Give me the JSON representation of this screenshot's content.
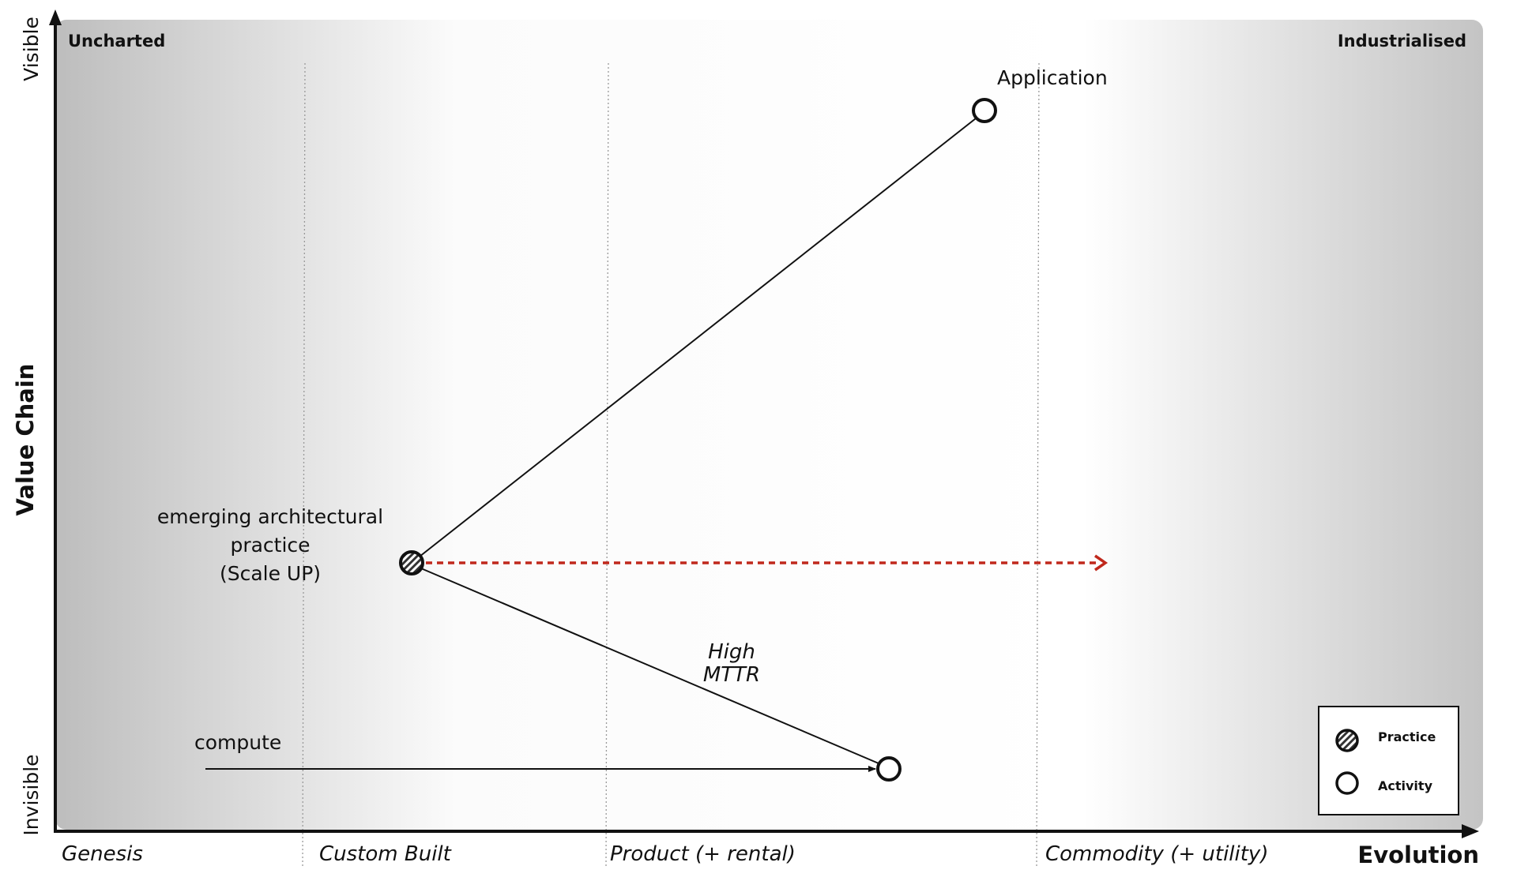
{
  "map": {
    "y_axis_label": "Value Chain",
    "y_top_label": "Visible",
    "y_bottom_label": "Invisible",
    "x_axis_label": "Evolution",
    "corner_left": "Uncharted",
    "corner_right": "Industrialised",
    "stages": [
      "Genesis",
      "Custom Built",
      "Product (+ rental)",
      "Commodity (+ utility)"
    ],
    "nodes": {
      "application": "Application",
      "practice_lines": [
        "emerging architectural",
        "practice",
        "(Scale UP)"
      ],
      "compute": "compute"
    },
    "annotation_lines": [
      "High",
      "MTTR"
    ],
    "evolution_arrow_color": "#c0281c"
  },
  "legend": {
    "practice": "Practice",
    "activity": "Activity"
  }
}
